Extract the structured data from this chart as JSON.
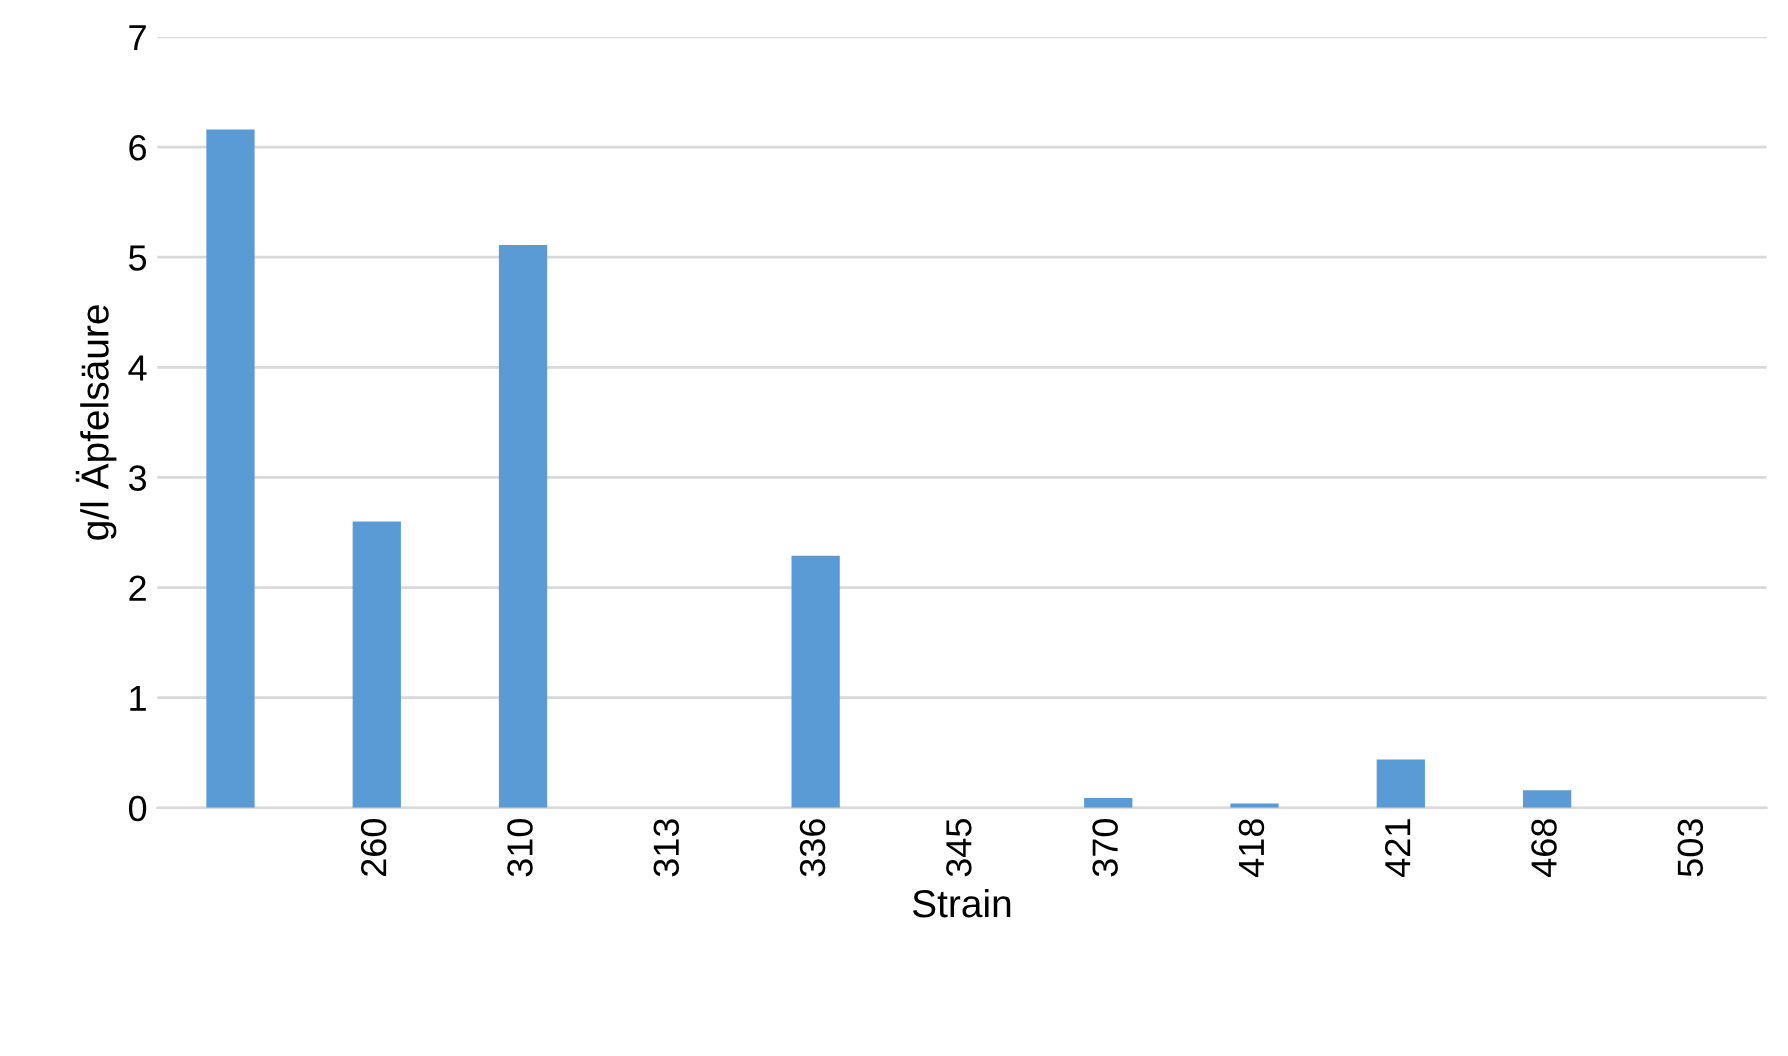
{
  "chart_data": {
    "type": "bar",
    "xlabel": "Strain",
    "ylabel": "g/l Äpfelsäure",
    "categories": [
      null,
      "260",
      "310",
      "313",
      "336",
      "345",
      "370",
      "418",
      "421",
      "468",
      "503"
    ],
    "values": [
      6.16,
      2.6,
      5.11,
      0,
      2.29,
      0,
      0.09,
      0.04,
      0.44,
      0.16,
      0
    ],
    "color": "#5b9bd5",
    "ylim": [
      0,
      7
    ],
    "yticks": [
      0,
      1,
      2,
      3,
      4,
      5,
      6,
      7
    ],
    "grid": "y"
  }
}
